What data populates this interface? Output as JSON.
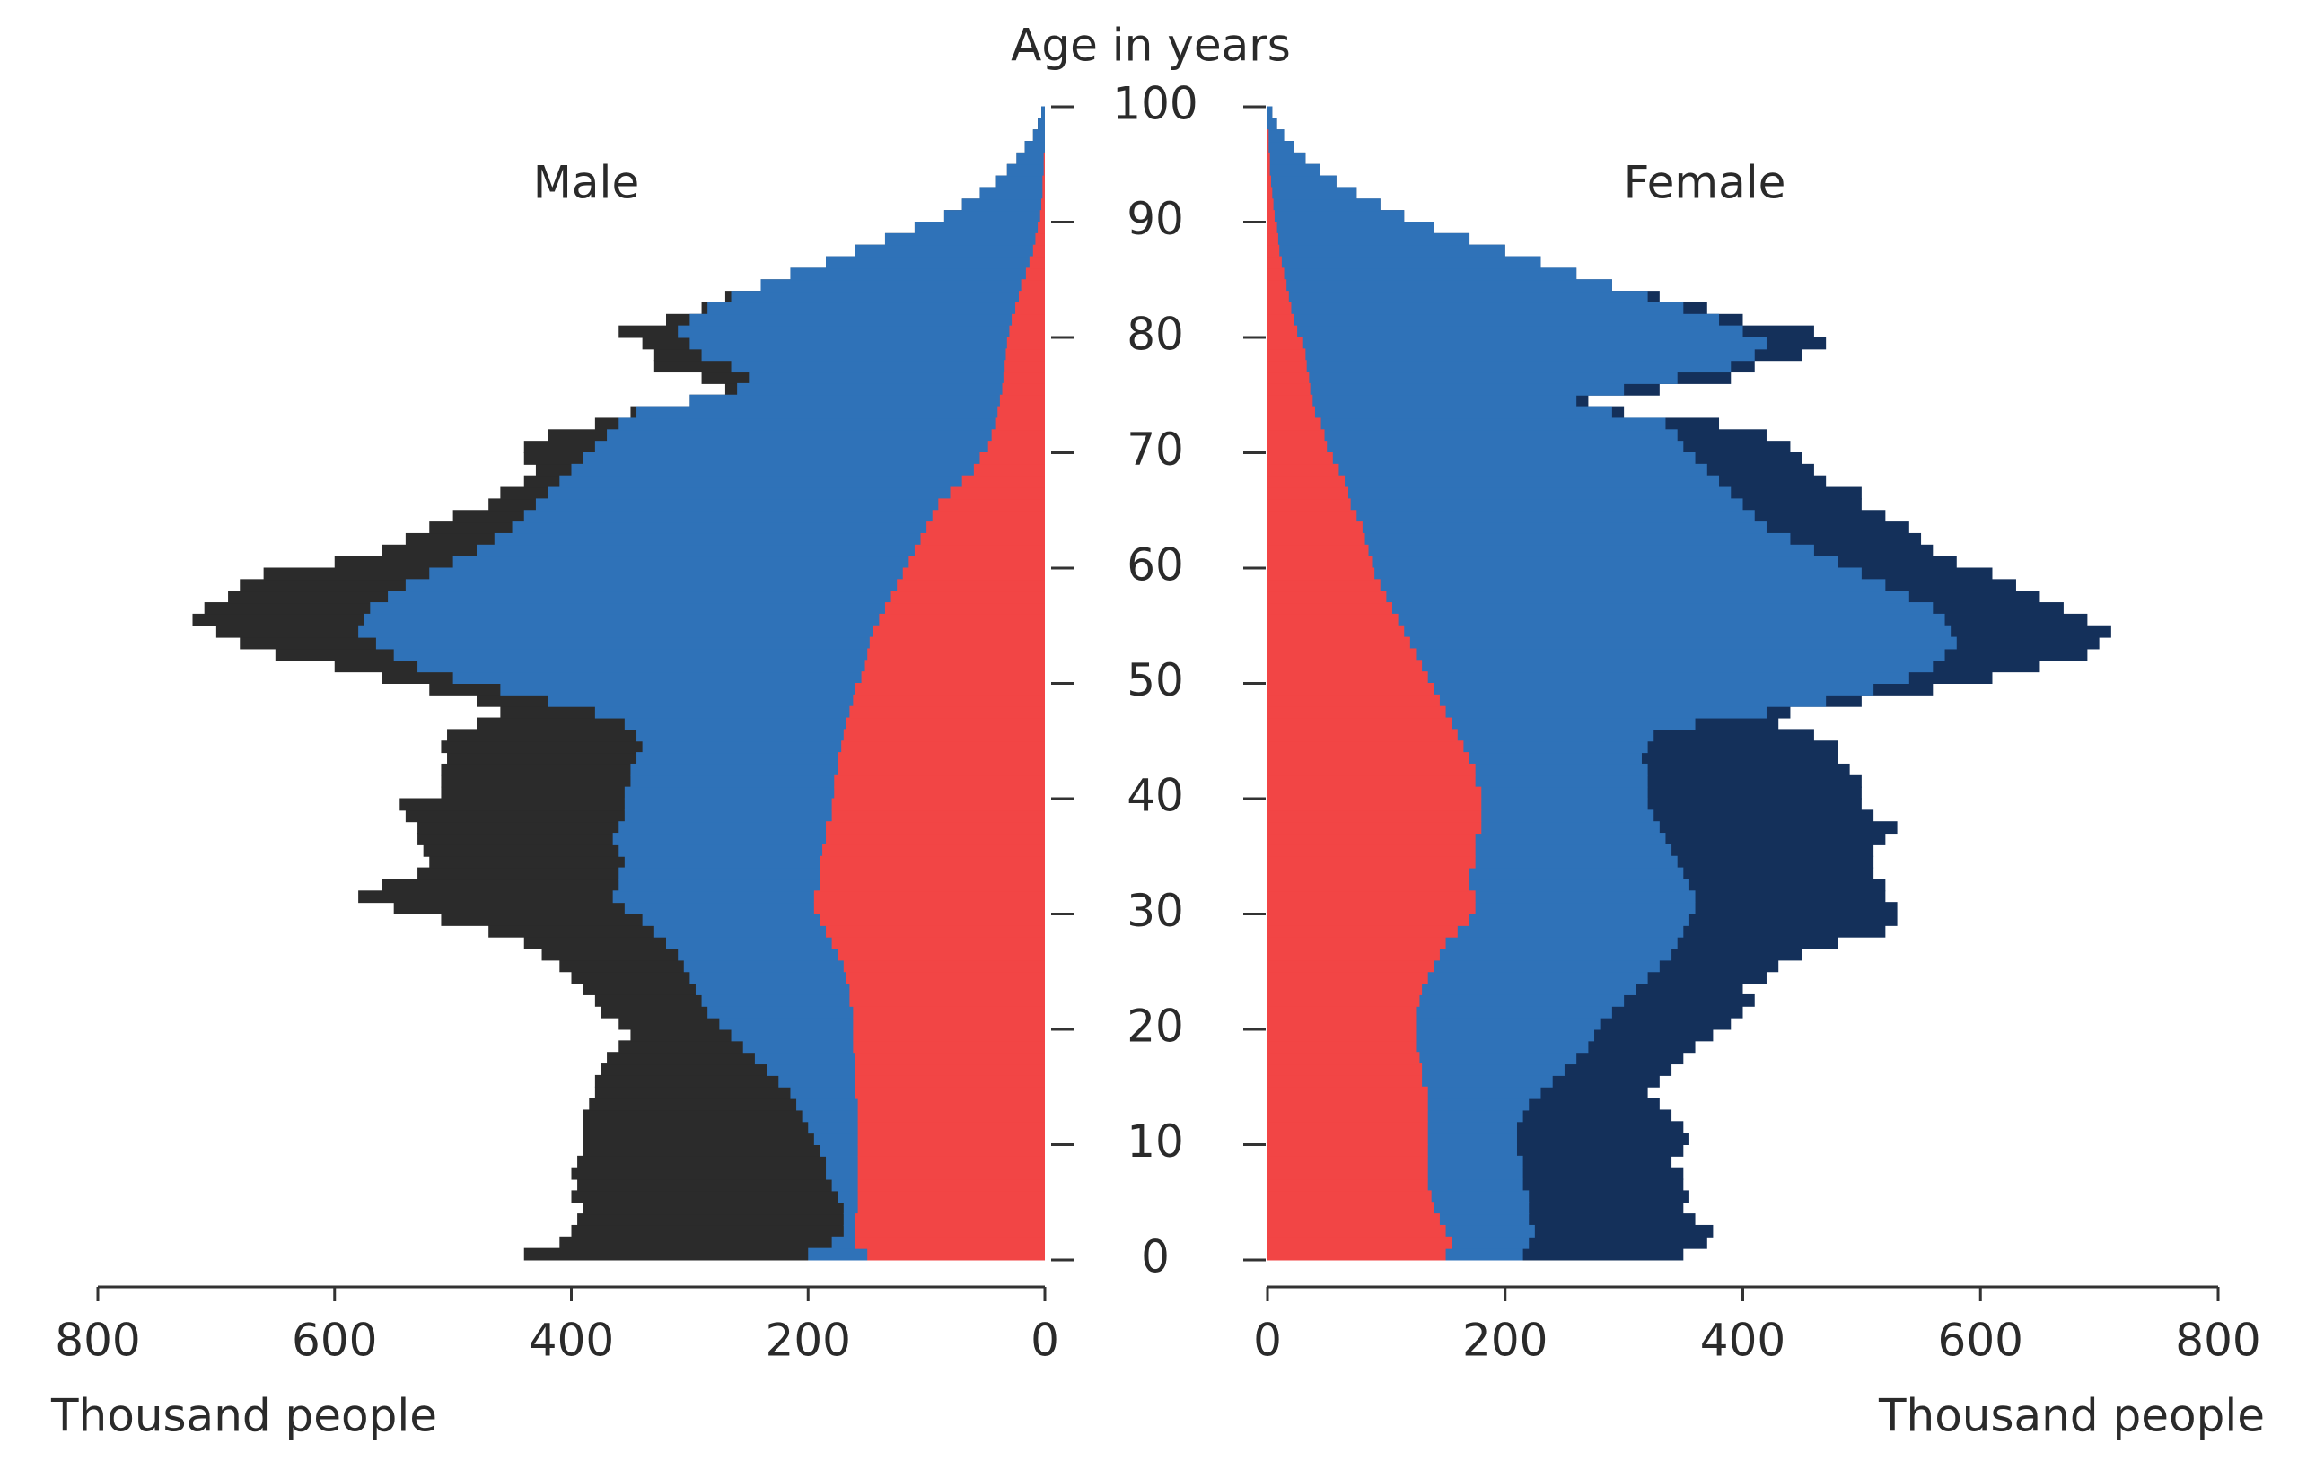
{
  "chart_data": {
    "type": "pyramid",
    "title": "Age in years",
    "left_label": "Male",
    "right_label": "Female",
    "xlabel": "Thousand people",
    "xlim": [
      0,
      800
    ],
    "xticks": [
      0,
      200,
      400,
      600,
      800
    ],
    "ylim": [
      0,
      100
    ],
    "yticks": [
      0,
      10,
      20,
      30,
      40,
      50,
      60,
      70,
      80,
      90,
      100
    ],
    "y": [
      0,
      1,
      2,
      3,
      4,
      5,
      6,
      7,
      8,
      9,
      10,
      11,
      12,
      13,
      14,
      15,
      16,
      17,
      18,
      19,
      20,
      21,
      22,
      23,
      24,
      25,
      26,
      27,
      28,
      29,
      30,
      31,
      32,
      33,
      34,
      35,
      36,
      37,
      38,
      39,
      40,
      41,
      42,
      43,
      44,
      45,
      46,
      47,
      48,
      49,
      50,
      51,
      52,
      53,
      54,
      55,
      56,
      57,
      58,
      59,
      60,
      61,
      62,
      63,
      64,
      65,
      66,
      67,
      68,
      69,
      70,
      71,
      72,
      73,
      74,
      75,
      76,
      77,
      78,
      79,
      80,
      81,
      82,
      83,
      84,
      85,
      86,
      87,
      88,
      89,
      90,
      91,
      92,
      93,
      94,
      95,
      96,
      97,
      98,
      99
    ],
    "male": [
      {
        "color": "#2b2b2b",
        "values": [
          440,
          410,
          400,
          395,
          390,
          400,
          395,
          400,
          395,
          390,
          390,
          390,
          390,
          385,
          380,
          380,
          375,
          370,
          360,
          350,
          360,
          375,
          380,
          390,
          400,
          410,
          425,
          440,
          470,
          510,
          550,
          580,
          560,
          530,
          520,
          525,
          530,
          530,
          540,
          545,
          510,
          510,
          510,
          505,
          510,
          505,
          480,
          460,
          480,
          520,
          560,
          600,
          650,
          680,
          700,
          720,
          710,
          690,
          680,
          660,
          600,
          560,
          540,
          520,
          500,
          470,
          460,
          440,
          430,
          440,
          440,
          420,
          380,
          350,
          300,
          270,
          290,
          330,
          330,
          340,
          360,
          320,
          290,
          270,
          240,
          215,
          185,
          160,
          135,
          110,
          85,
          70,
          55,
          42,
          32,
          24,
          17,
          10,
          6,
          3
        ]
      },
      {
        "color": "#2f72b8",
        "values": [
          200,
          180,
          170,
          170,
          170,
          175,
          180,
          185,
          185,
          190,
          195,
          200,
          205,
          210,
          215,
          225,
          235,
          245,
          255,
          265,
          275,
          285,
          290,
          295,
          300,
          305,
          310,
          320,
          330,
          340,
          355,
          365,
          360,
          360,
          355,
          360,
          365,
          360,
          355,
          355,
          355,
          350,
          350,
          345,
          340,
          345,
          355,
          380,
          420,
          460,
          500,
          530,
          550,
          565,
          580,
          575,
          570,
          555,
          540,
          520,
          500,
          480,
          465,
          450,
          440,
          430,
          420,
          410,
          400,
          390,
          380,
          370,
          360,
          345,
          300,
          260,
          250,
          265,
          290,
          300,
          310,
          300,
          285,
          265,
          240,
          215,
          185,
          160,
          135,
          110,
          85,
          70,
          55,
          42,
          32,
          24,
          17,
          10,
          6,
          3
        ]
      },
      {
        "color": "#f24545",
        "values": [
          150,
          160,
          160,
          160,
          158,
          158,
          158,
          158,
          158,
          158,
          158,
          158,
          158,
          158,
          160,
          160,
          160,
          160,
          162,
          162,
          162,
          162,
          165,
          165,
          168,
          170,
          175,
          180,
          185,
          190,
          195,
          195,
          190,
          190,
          190,
          188,
          185,
          185,
          180,
          180,
          178,
          178,
          175,
          175,
          172,
          170,
          168,
          165,
          162,
          160,
          155,
          152,
          150,
          148,
          145,
          140,
          135,
          130,
          125,
          120,
          115,
          110,
          105,
          100,
          95,
          90,
          80,
          70,
          60,
          55,
          48,
          45,
          42,
          40,
          38,
          36,
          35,
          34,
          33,
          32,
          30,
          28,
          25,
          22,
          20,
          16,
          13,
          10,
          8,
          6,
          4,
          3,
          2,
          2,
          1,
          1,
          0,
          0,
          0,
          0
        ]
      }
    ],
    "female": [
      {
        "color": "#14305a",
        "values": [
          350,
          370,
          375,
          360,
          350,
          355,
          350,
          350,
          340,
          350,
          355,
          350,
          340,
          330,
          320,
          330,
          340,
          350,
          360,
          375,
          390,
          400,
          410,
          400,
          420,
          430,
          450,
          480,
          520,
          530,
          530,
          520,
          520,
          510,
          510,
          510,
          520,
          530,
          510,
          500,
          500,
          500,
          490,
          480,
          480,
          460,
          430,
          440,
          500,
          560,
          610,
          650,
          690,
          700,
          710,
          690,
          670,
          650,
          630,
          610,
          580,
          560,
          550,
          540,
          520,
          500,
          500,
          470,
          460,
          450,
          440,
          420,
          380,
          300,
          270,
          330,
          390,
          410,
          450,
          470,
          460,
          400,
          370,
          330,
          290,
          260,
          230,
          200,
          170,
          140,
          115,
          95,
          75,
          58,
          44,
          32,
          22,
          14,
          8,
          4
        ]
      },
      {
        "color": "#2f72b8",
        "values": [
          215,
          220,
          225,
          220,
          220,
          220,
          215,
          215,
          215,
          210,
          210,
          210,
          215,
          220,
          230,
          240,
          250,
          260,
          270,
          275,
          280,
          290,
          300,
          310,
          320,
          330,
          340,
          345,
          350,
          355,
          360,
          360,
          355,
          350,
          345,
          340,
          335,
          330,
          325,
          320,
          320,
          320,
          320,
          315,
          320,
          325,
          360,
          420,
          470,
          510,
          540,
          560,
          570,
          580,
          575,
          570,
          560,
          540,
          520,
          500,
          480,
          460,
          440,
          420,
          410,
          400,
          390,
          380,
          370,
          360,
          350,
          345,
          335,
          290,
          260,
          300,
          345,
          390,
          410,
          420,
          400,
          380,
          350,
          320,
          290,
          260,
          230,
          200,
          170,
          140,
          115,
          95,
          75,
          58,
          44,
          32,
          22,
          14,
          8,
          4
        ]
      },
      {
        "color": "#f24545",
        "values": [
          150,
          155,
          150,
          145,
          140,
          138,
          135,
          135,
          135,
          135,
          135,
          135,
          135,
          135,
          135,
          130,
          130,
          128,
          125,
          125,
          125,
          125,
          128,
          130,
          135,
          140,
          145,
          150,
          160,
          170,
          175,
          175,
          170,
          170,
          175,
          175,
          175,
          180,
          180,
          180,
          180,
          175,
          175,
          170,
          165,
          160,
          155,
          150,
          145,
          140,
          135,
          130,
          125,
          120,
          115,
          110,
          105,
          100,
          95,
          90,
          88,
          85,
          82,
          80,
          75,
          70,
          68,
          65,
          60,
          55,
          50,
          48,
          45,
          40,
          38,
          36,
          35,
          33,
          32,
          30,
          25,
          22,
          20,
          18,
          16,
          14,
          12,
          10,
          9,
          8,
          6,
          5,
          4,
          3,
          2,
          2,
          1,
          1,
          0,
          0
        ]
      }
    ]
  }
}
